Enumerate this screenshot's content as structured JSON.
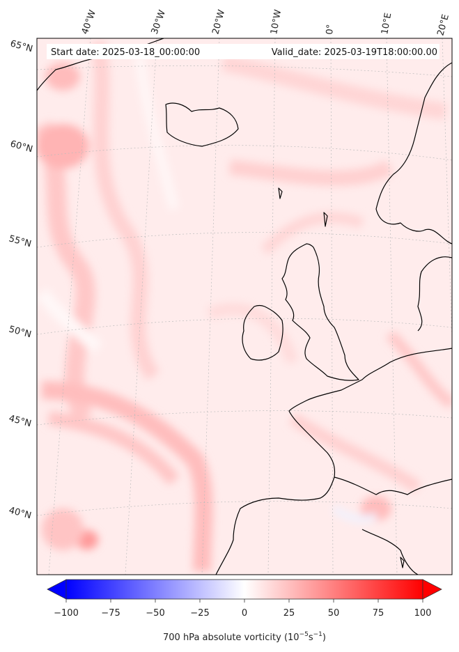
{
  "header": {
    "start_date": "Start date: 2025-03-18_00:00:00",
    "valid_date": "Valid_date: 2025-03-19T18:00:00.00"
  },
  "longitude_labels": [
    "40°W",
    "30°W",
    "20°W",
    "10°W",
    "0°",
    "10°E",
    "20°E"
  ],
  "latitude_labels": [
    "65°N",
    "60°N",
    "55°N",
    "50°N",
    "45°N",
    "40°N"
  ],
  "colorbar": {
    "ticks": [
      "−100",
      "−75",
      "−50",
      "−25",
      "0",
      "25",
      "50",
      "75",
      "100"
    ],
    "label": "700 hPa absolute vorticity (10",
    "label_exp1": "−5",
    "label_mid": "s",
    "label_exp2": "−1",
    "label_end": ")",
    "min": -100,
    "max": 100,
    "low_color": "#0000ff",
    "mid_color": "#ffffff",
    "high_color": "#ff0000"
  },
  "map": {
    "field_base_color": "#ffecec",
    "coast_color": "#000000"
  }
}
